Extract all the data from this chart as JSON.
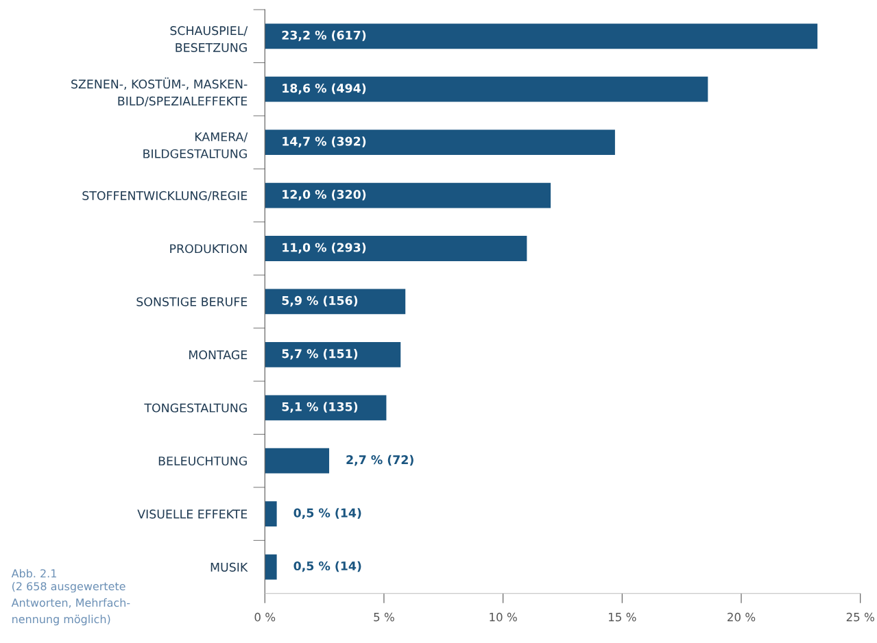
{
  "chart_data": {
    "type": "bar",
    "orientation": "horizontal",
    "categories": [
      "SCHAUSPIEL/\nBESETZUNG",
      "SZENEN-, KOSTÜM-, MASKEN-\nBILD/SPEZIALEFFEKTE",
      "KAMERA/\nBILDGESTALTUNG",
      "STOFFENTWICKLUNG/REGIE",
      "PRODUKTION",
      "SONSTIGE BERUFE",
      "MONTAGE",
      "TONGESTALTUNG",
      "BELEUCHTUNG",
      "VISUELLE EFFEKTE",
      "MUSIK"
    ],
    "values": [
      23.2,
      18.6,
      14.7,
      12.0,
      11.0,
      5.9,
      5.7,
      5.1,
      2.7,
      0.5,
      0.5
    ],
    "value_labels": [
      "23,2 % (617)",
      "18,6 % (494)",
      "14,7 % (392)",
      "12,0 % (320)",
      "11,0 % (293)",
      "5,9 % (156)",
      "5,7 % (151)",
      "5,1 % (135)",
      "2,7 % (72)",
      "0,5 % (14)",
      "0,5 % (14)"
    ],
    "color": "#1a5580",
    "xlim": [
      0,
      25
    ],
    "xticks": [
      {
        "value": 0,
        "label": "0 %"
      },
      {
        "value": 5,
        "label": "5 %"
      },
      {
        "value": 10,
        "label": "10 %"
      },
      {
        "value": 15,
        "label": "15 %"
      },
      {
        "value": 20,
        "label": "20 %"
      },
      {
        "value": 25,
        "label": "25 %"
      }
    ],
    "grid": false,
    "legend": false,
    "annotations": [
      "Abb. 2.1",
      "(2 658 ausgewertete\nAntworten, Mehrfach-\nnennung möglich)"
    ]
  }
}
